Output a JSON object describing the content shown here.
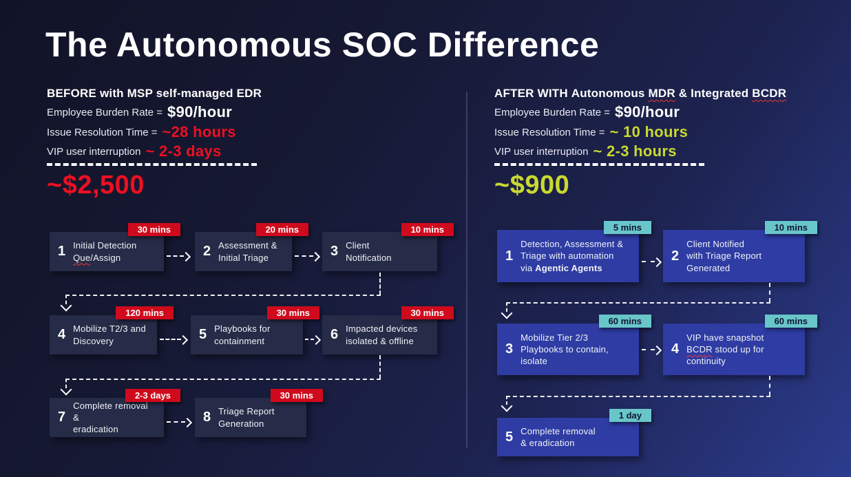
{
  "title": "The Autonomous SOC Difference",
  "colors": {
    "red_text": "#ee0f22",
    "badge_red": "#cf0a1c",
    "teal": "#68c6ca",
    "yellow": "#c9d930",
    "white": "#ffffff",
    "box_left": "#262b47",
    "box_right": "#2e3ca3"
  },
  "before": {
    "heading_parts": [
      {
        "t": "BEFORE ",
        "xb": true
      },
      {
        "t": "with MSP self-managed EDR"
      }
    ],
    "stats": [
      {
        "label": "Employee Burden Rate =",
        "value": "$90/hour",
        "color": "#ffffff"
      },
      {
        "label": "Issue Resolution Time =",
        "value": "~28 hours",
        "color": "#ee0f22"
      },
      {
        "label": "VIP user interruption",
        "value": "~ 2-3 days",
        "color": "#ee0f22"
      }
    ],
    "total": "~$2,500",
    "total_color": "#ee0f22",
    "steps": [
      {
        "num": "1",
        "badge": "30 mins",
        "parts": [
          {
            "t": "Initial Detection"
          },
          {
            "br": true
          },
          {
            "t": "Que",
            "w": true
          },
          {
            "t": "/Assign"
          }
        ]
      },
      {
        "num": "2",
        "badge": "20 mins",
        "parts": [
          {
            "t": "Assessment &"
          },
          {
            "br": true
          },
          {
            "t": "Initial Triage"
          }
        ]
      },
      {
        "num": "3",
        "badge": "10 mins",
        "parts": [
          {
            "t": "Client"
          },
          {
            "br": true
          },
          {
            "t": "Notification"
          }
        ]
      },
      {
        "num": "4",
        "badge": "120 mins",
        "parts": [
          {
            "t": "Mobilize T2/3 and"
          },
          {
            "br": true
          },
          {
            "t": "Discovery"
          }
        ]
      },
      {
        "num": "5",
        "badge": "30 mins",
        "parts": [
          {
            "t": "Playbooks for"
          },
          {
            "br": true
          },
          {
            "t": "containment"
          }
        ]
      },
      {
        "num": "6",
        "badge": "30 mins",
        "parts": [
          {
            "t": "Impacted devices"
          },
          {
            "br": true
          },
          {
            "t": "isolated & offline"
          }
        ]
      },
      {
        "num": "7",
        "badge": "2-3 days",
        "parts": [
          {
            "t": "Complete removal &"
          },
          {
            "br": true
          },
          {
            "t": "eradication"
          }
        ]
      },
      {
        "num": "8",
        "badge": "30 mins",
        "parts": [
          {
            "t": "Triage Report"
          },
          {
            "br": true
          },
          {
            "t": "Generation"
          }
        ]
      }
    ]
  },
  "after": {
    "heading_parts": [
      {
        "t": "AFTER WITH ",
        "xb": true
      },
      {
        "t": "Autonomous "
      },
      {
        "t": "MDR",
        "w": true
      },
      {
        "t": " & Integrated "
      },
      {
        "t": "BCDR",
        "w": true
      }
    ],
    "stats": [
      {
        "label": "Employee Burden Rate =",
        "value": "$90/hour",
        "color": "#ffffff"
      },
      {
        "label": "Issue Resolution Time =",
        "value": "~ 10 hours",
        "color": "#c9d930"
      },
      {
        "label": "VIP user interruption",
        "value": "~ 2-3 hours",
        "color": "#c9d930"
      }
    ],
    "total": "~$900",
    "total_color": "#c9d930",
    "steps": [
      {
        "num": "1",
        "badge": "5 mins",
        "parts": [
          {
            "t": "Detection, Assessment &"
          },
          {
            "br": true
          },
          {
            "t": "Triage with automation"
          },
          {
            "br": true
          },
          {
            "t": "via "
          },
          {
            "t": "Agentic Agents",
            "b": true
          }
        ]
      },
      {
        "num": "2",
        "badge": "10 mins",
        "parts": [
          {
            "t": "Client Notified"
          },
          {
            "br": true
          },
          {
            "t": "with Triage Report"
          },
          {
            "br": true
          },
          {
            "t": "Generated"
          }
        ]
      },
      {
        "num": "3",
        "badge": "60 mins",
        "parts": [
          {
            "t": "Mobilize Tier 2/3"
          },
          {
            "br": true
          },
          {
            "t": "Playbooks to contain,"
          },
          {
            "br": true
          },
          {
            "t": "isolate"
          }
        ]
      },
      {
        "num": "4",
        "badge": "60 mins",
        "parts": [
          {
            "t": "VIP have snapshot"
          },
          {
            "br": true
          },
          {
            "t": "BCDR",
            "w": true
          },
          {
            "t": " stood up for"
          },
          {
            "br": true
          },
          {
            "t": "continuity"
          }
        ]
      },
      {
        "num": "5",
        "badge": "1 day",
        "parts": [
          {
            "t": "Complete removal"
          },
          {
            "br": true
          },
          {
            "t": "& eradication"
          }
        ]
      }
    ]
  }
}
